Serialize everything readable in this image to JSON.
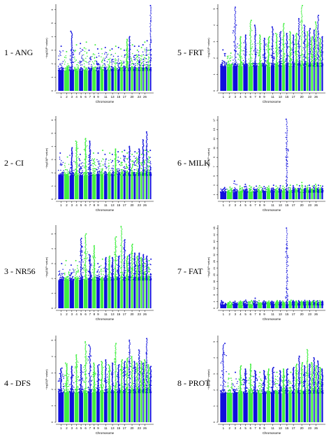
{
  "colors": {
    "odd": "#1010dd",
    "even": "#3fef3f"
  },
  "chart_data": [
    {
      "type": "scatter",
      "label": "1 - ANG",
      "xlabel": "Chromosome",
      "ylabel": "−log10(P−value)",
      "yticks": [
        "0",
        "1",
        "2",
        "3",
        "4",
        "5",
        "6"
      ],
      "ylim": [
        0,
        6.3
      ],
      "xticks": [
        "1",
        "2",
        "3",
        "4",
        "5",
        "6",
        "7",
        "8",
        "9",
        "11",
        "13",
        "15",
        "17",
        "20",
        "23",
        "26"
      ],
      "chromosomes": 29,
      "baseline": 1.5,
      "peaks": [
        3.3,
        2.9,
        4.4,
        3.4,
        3.5,
        3.6,
        3.0,
        3.4,
        3.1,
        3.1,
        3.2,
        3.0,
        3.1,
        3.3,
        3.2,
        3.1,
        3.0,
        3.8,
        4.0,
        3.4,
        3.3,
        3.0,
        3.3,
        3.2,
        3.4,
        3.6,
        3.7,
        3.0,
        6.3
      ]
    },
    {
      "type": "scatter",
      "label": "2 - CI",
      "xlabel": "Chromosome",
      "ylabel": "−log10(P−value)",
      "yticks": [
        "0",
        "1",
        "2",
        "3",
        "4",
        "5",
        "6"
      ],
      "ylim": [
        0,
        6.2
      ],
      "xticks": [
        "1",
        "2",
        "3",
        "4",
        "5",
        "6",
        "7",
        "8",
        "9",
        "11",
        "13",
        "15",
        "17",
        "20",
        "23",
        "26"
      ],
      "chromosomes": 29,
      "baseline": 1.8,
      "peaks": [
        3.5,
        3.2,
        3.9,
        4.4,
        3.4,
        4.6,
        4.4,
        3.5,
        3.5,
        3.7,
        3.4,
        3.5,
        3.4,
        3.8,
        3.6,
        3.6,
        3.7,
        3.5,
        4.0,
        3.4,
        3.6,
        3.5,
        3.8,
        3.4,
        4.5,
        3.7,
        5.1,
        3.6,
        3.7
      ]
    },
    {
      "type": "scatter",
      "label": "3 - NR56",
      "xlabel": "Chromosome",
      "ylabel": "−log10(P−value)",
      "yticks": [
        "0",
        "1",
        "2",
        "3",
        "4",
        "5"
      ],
      "ylim": [
        0,
        5.5
      ],
      "xticks": [
        "1",
        "2",
        "3",
        "4",
        "5",
        "6",
        "7",
        "8",
        "9",
        "11",
        "13",
        "15",
        "17",
        "20",
        "23",
        "26"
      ],
      "chromosomes": 29,
      "baseline": 1.9,
      "peaks": [
        3.0,
        3.2,
        2.9,
        3.2,
        4.7,
        5.0,
        3.6,
        4.2,
        3.0,
        3.3,
        3.4,
        3.5,
        3.4,
        4.8,
        3.5,
        5.5,
        4.6,
        3.5,
        3.6,
        4.3,
        3.7,
        3.5,
        3.7,
        3.4,
        3.6,
        3.3,
        3.5,
        3.2,
        3.3
      ]
    },
    {
      "type": "scatter",
      "label": "4 - DFS",
      "xlabel": "Chromosome",
      "ylabel": "−log10(P−value)",
      "yticks": [
        "0",
        "1",
        "2",
        "3",
        "4",
        "5"
      ],
      "ylim": [
        0,
        5.2
      ],
      "xticks": [
        "1",
        "2",
        "3",
        "4",
        "5",
        "6",
        "7",
        "8",
        "9",
        "11",
        "13",
        "15",
        "17",
        "20",
        "23",
        "26"
      ],
      "chromosomes": 29,
      "baseline": 1.8,
      "peaks": [
        3.3,
        3.6,
        3.4,
        4.1,
        3.5,
        4.9,
        4.7,
        3.6,
        3.5,
        3.7,
        3.8,
        3.5,
        3.6,
        4.8,
        3.5,
        3.8,
        3.7,
        3.9,
        5.0,
        4.0,
        3.7,
        3.6,
        4.4,
        3.7,
        3.6,
        3.8,
        5.1,
        3.5,
        3.4
      ]
    },
    {
      "type": "scatter",
      "label": "5 - FRT",
      "xlabel": "Chromosome",
      "ylabel": "−log10(P−value)",
      "yticks": [
        "0",
        "1",
        "2",
        "3",
        "4",
        "5"
      ],
      "ylim": [
        0,
        5.2
      ],
      "xticks": [
        "1",
        "2",
        "3",
        "4",
        "5",
        "6",
        "7",
        "8",
        "9",
        "11",
        "13",
        "15",
        "17",
        "20",
        "23",
        "26"
      ],
      "chromosomes": 29,
      "baseline": 1.5,
      "peaks": [
        2.5,
        2.3,
        5.1,
        3.3,
        3.4,
        4.3,
        4.0,
        3.4,
        3.2,
        3.3,
        3.9,
        3.5,
        3.6,
        4.1,
        3.5,
        3.6,
        3.4,
        3.5,
        4.4,
        5.2,
        4.0,
        3.6,
        3.8,
        3.3,
        3.7,
        4.2,
        4.6,
        3.2,
        3.3
      ]
    },
    {
      "type": "scatter",
      "label": "6 - MILK",
      "xlabel": "Chromosome",
      "ylabel": "−log10(P−value)",
      "yticks": [
        "1",
        "3",
        "5",
        "7",
        "9",
        "11",
        "13",
        "15",
        "17"
      ],
      "ylim": [
        0,
        17.6
      ],
      "xticks": [
        "1",
        "2",
        "3",
        "4",
        "5",
        "6",
        "7",
        "8",
        "9",
        "11",
        "13",
        "15",
        "17",
        "20",
        "23",
        "26"
      ],
      "chromosomes": 29,
      "baseline": 1.5,
      "peaks": [
        2.5,
        2.6,
        3.9,
        2.8,
        3.2,
        2.9,
        2.8,
        2.9,
        2.7,
        2.8,
        3.0,
        2.8,
        2.9,
        2.8,
        17.2,
        3.0,
        2.9,
        3.1,
        2.9,
        3.6,
        2.8,
        2.9,
        3.0,
        2.8,
        2.9,
        3.2,
        3.0,
        2.9,
        2.8
      ]
    },
    {
      "type": "scatter",
      "label": "7 - FAT",
      "xlabel": "Chromosome",
      "ylabel": "−log10(P−value)",
      "yticks": [
        "0",
        "4",
        "8",
        "12",
        "16",
        "20",
        "24",
        "28",
        "32",
        "36",
        "40",
        "44",
        "48"
      ],
      "ylim": [
        0,
        49
      ],
      "xticks": [
        "1",
        "2",
        "3",
        "4",
        "5",
        "6",
        "7",
        "8",
        "9",
        "11",
        "13",
        "15",
        "17",
        "20",
        "23",
        "26"
      ],
      "chromosomes": 29,
      "baseline": 2.0,
      "peaks": [
        4.5,
        4.0,
        4.2,
        4.3,
        4.8,
        4.6,
        6.0,
        4.5,
        4.4,
        4.3,
        4.2,
        4.6,
        4.4,
        4.3,
        48.0,
        4.8,
        4.6,
        4.4,
        4.5,
        4.3,
        4.7,
        4.4,
        4.5,
        4.2,
        4.6,
        4.3,
        4.4,
        4.5,
        4.3
      ]
    },
    {
      "type": "scatter",
      "label": "8 - PROT",
      "xlabel": "Chromosome",
      "ylabel": "−log10(P−value)",
      "yticks": [
        "0",
        "1",
        "2",
        "3",
        "4",
        "5"
      ],
      "ylim": [
        0,
        5.3
      ],
      "xticks": [
        "1",
        "2",
        "3",
        "4",
        "5",
        "6",
        "7",
        "8",
        "9",
        "11",
        "13",
        "15",
        "17",
        "20",
        "23",
        "26"
      ],
      "chromosomes": 29,
      "baseline": 1.8,
      "peaks": [
        4.9,
        3.0,
        3.1,
        3.5,
        3.3,
        3.6,
        3.2,
        3.1,
        3.2,
        3.3,
        3.4,
        3.1,
        3.2,
        3.3,
        3.3,
        3.1,
        3.4,
        3.6,
        4.1,
        3.7,
        3.5,
        4.5,
        3.6,
        3.7,
        4.0,
        3.5,
        3.8,
        3.4,
        3.3
      ]
    }
  ]
}
